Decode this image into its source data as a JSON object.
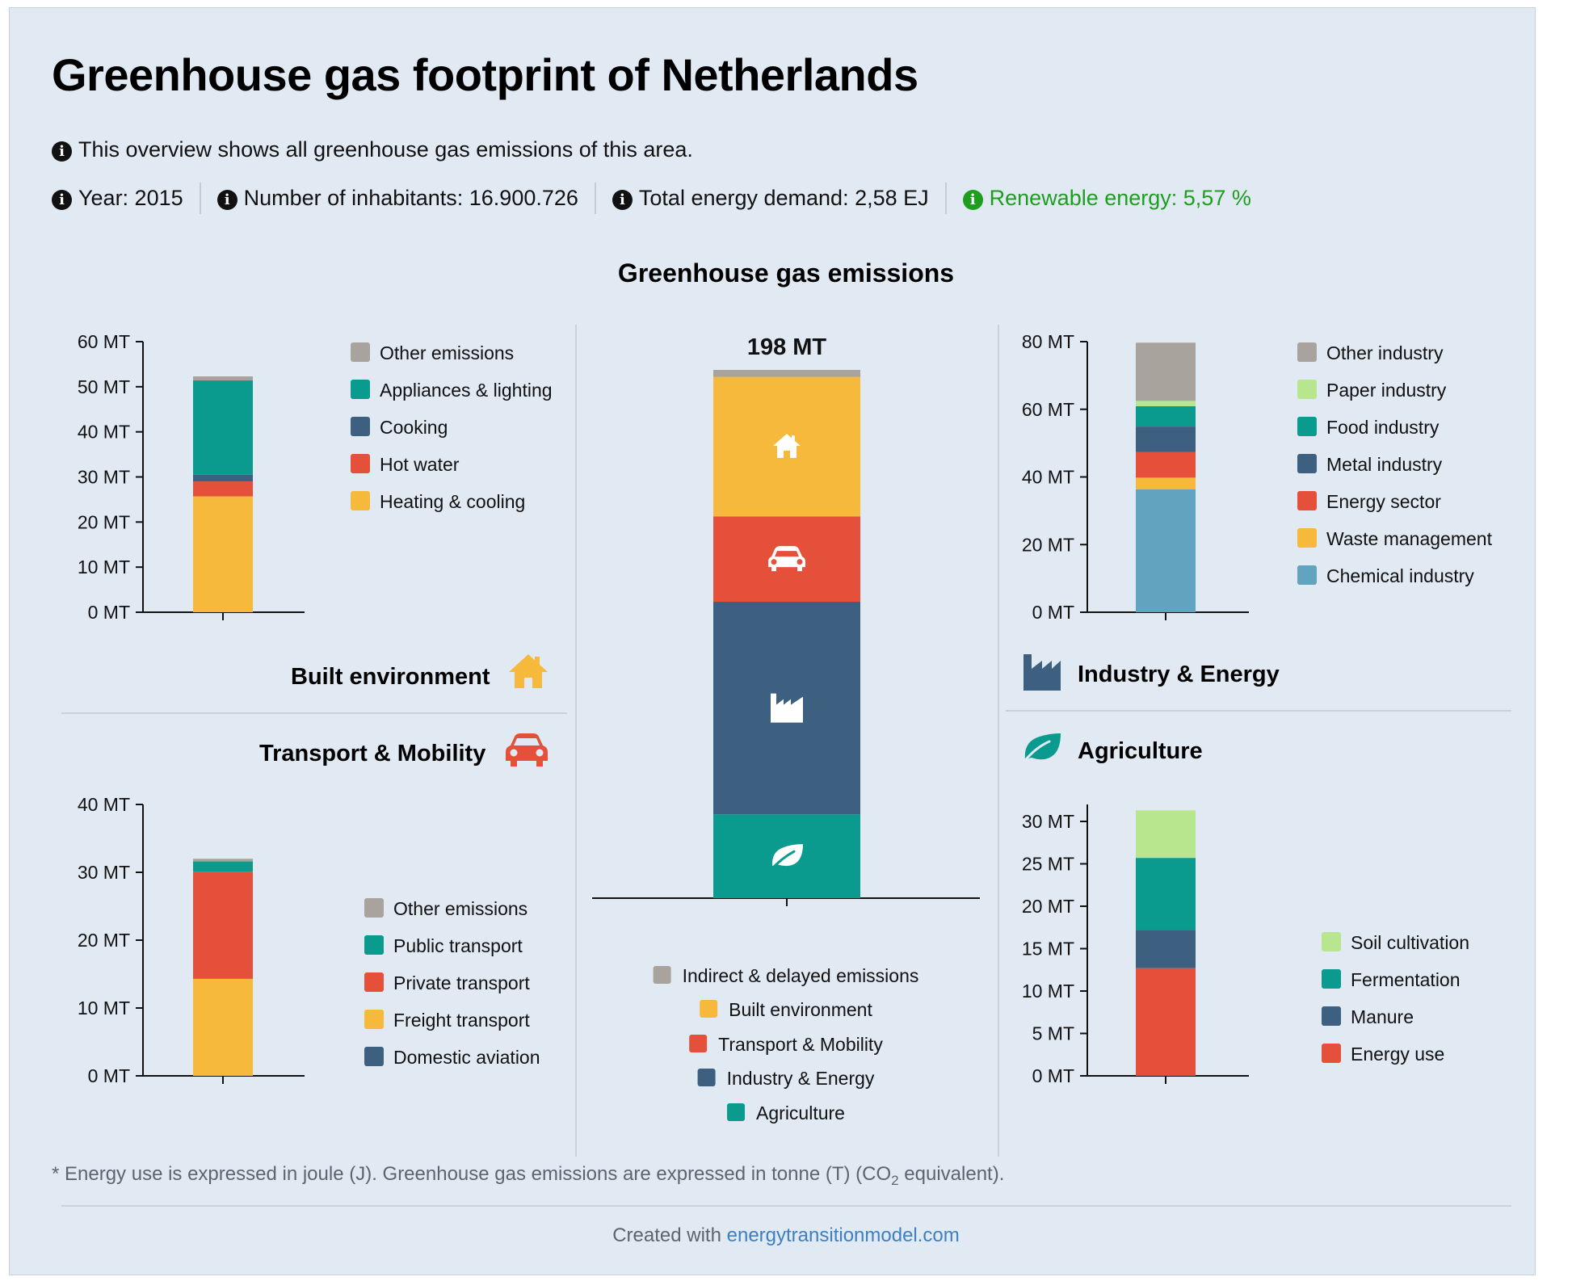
{
  "page": {
    "title": "Greenhouse gas footprint of Netherlands",
    "overview": "This overview shows all greenhouse gas emissions of this area.",
    "stats": [
      "Year: 2015",
      "Number of inhabitants: 16.900.726",
      "Total energy demand: 2,58 EJ",
      "Renewable energy: 5,57 %"
    ],
    "emissions_title": "Greenhouse gas emissions",
    "footnote_pre": "* Energy use is expressed in joule (J). Greenhouse gas emissions are expressed in tonne (T) (CO",
    "footnote_sub": "2",
    "footnote_post": " equivalent).",
    "credit_prefix": "Created with ",
    "credit_link": "energytransitionmodel.com"
  },
  "colors": {
    "grey": "#a8a49d",
    "yellow": "#f6b93b",
    "red": "#e5503a",
    "navy": "#3d5f80",
    "teal": "#0a9a8e",
    "lightgreen": "#b8e68f",
    "steelblue": "#62a3c0",
    "renewable": "#1e9e1e"
  },
  "chart_data": [
    {
      "id": "built",
      "heading": "Built environment",
      "icon": "house-icon",
      "type": "bar",
      "stacked": true,
      "ylim": [
        0,
        60
      ],
      "ticks": [
        0,
        10,
        20,
        30,
        40,
        50,
        60
      ],
      "tick_labels": [
        "0 MT",
        "10 MT",
        "20 MT",
        "30 MT",
        "40 MT",
        "50 MT",
        "60 MT"
      ],
      "series": [
        {
          "name": "Heating & cooling",
          "value": 25.7,
          "color": "#f6b93b"
        },
        {
          "name": "Hot water",
          "value": 3.3,
          "color": "#e5503a"
        },
        {
          "name": "Cooking",
          "value": 1.5,
          "color": "#3d5f80"
        },
        {
          "name": "Appliances & lighting",
          "value": 20.9,
          "color": "#0a9a8e"
        },
        {
          "name": "Other emissions",
          "value": 0.9,
          "color": "#a8a49d"
        }
      ],
      "legend_order": [
        "Other emissions",
        "Appliances & lighting",
        "Cooking",
        "Hot water",
        "Heating & cooling"
      ]
    },
    {
      "id": "transport",
      "heading": "Transport & Mobility",
      "icon": "car-icon",
      "type": "bar",
      "stacked": true,
      "ylim": [
        0,
        40
      ],
      "ticks": [
        0,
        10,
        20,
        30,
        40
      ],
      "tick_labels": [
        "0 MT",
        "10 MT",
        "20 MT",
        "30 MT",
        "40 MT"
      ],
      "series": [
        {
          "name": "Domestic aviation",
          "value": 0.0,
          "color": "#3d5f80"
        },
        {
          "name": "Freight transport",
          "value": 14.3,
          "color": "#f6b93b"
        },
        {
          "name": "Private transport",
          "value": 15.8,
          "color": "#e5503a"
        },
        {
          "name": "Public transport",
          "value": 1.5,
          "color": "#0a9a8e"
        },
        {
          "name": "Other emissions",
          "value": 0.4,
          "color": "#a8a49d"
        }
      ],
      "legend_order": [
        "Other emissions",
        "Public transport",
        "Private transport",
        "Freight transport",
        "Domestic aviation"
      ]
    },
    {
      "id": "total",
      "type": "bar",
      "stacked": true,
      "total_label": "198 MT",
      "total": 198,
      "series": [
        {
          "name": "Agriculture",
          "value": 31.4,
          "color": "#0a9a8e",
          "icon": "leaf-icon"
        },
        {
          "name": "Industry & Energy",
          "value": 79.7,
          "color": "#3d5f80",
          "icon": "factory-icon"
        },
        {
          "name": "Transport & Mobility",
          "value": 32.0,
          "color": "#e5503a",
          "icon": "car-icon"
        },
        {
          "name": "Built environment",
          "value": 52.3,
          "color": "#f6b93b",
          "icon": "house-icon"
        },
        {
          "name": "Indirect & delayed emissions",
          "value": 2.6,
          "color": "#a8a49d"
        }
      ],
      "legend_order": [
        "Indirect & delayed emissions",
        "Built environment",
        "Transport & Mobility",
        "Industry & Energy",
        "Agriculture"
      ]
    },
    {
      "id": "industry",
      "heading": "Industry & Energy",
      "icon": "factory-icon",
      "type": "bar",
      "stacked": true,
      "ylim": [
        0,
        80
      ],
      "ticks": [
        0,
        20,
        40,
        60,
        80
      ],
      "tick_labels": [
        "0 MT",
        "20 MT",
        "40 MT",
        "60 MT",
        "80 MT"
      ],
      "series": [
        {
          "name": "Chemical industry",
          "value": 36.3,
          "color": "#62a3c0"
        },
        {
          "name": "Waste management",
          "value": 3.5,
          "color": "#f6b93b"
        },
        {
          "name": "Energy sector",
          "value": 7.6,
          "color": "#e5503a"
        },
        {
          "name": "Metal industry",
          "value": 7.5,
          "color": "#3d5f80"
        },
        {
          "name": "Food industry",
          "value": 6.0,
          "color": "#0a9a8e"
        },
        {
          "name": "Paper industry",
          "value": 1.6,
          "color": "#b8e68f"
        },
        {
          "name": "Other industry",
          "value": 17.2,
          "color": "#a8a49d"
        }
      ],
      "legend_order": [
        "Other industry",
        "Paper industry",
        "Food industry",
        "Metal industry",
        "Energy sector",
        "Waste management",
        "Chemical industry"
      ]
    },
    {
      "id": "agriculture",
      "heading": "Agriculture",
      "icon": "leaf-icon",
      "type": "bar",
      "stacked": true,
      "ylim": [
        0,
        32
      ],
      "ticks": [
        0,
        5,
        10,
        15,
        20,
        25,
        30
      ],
      "tick_labels": [
        "0 MT",
        "5 MT",
        "10 MT",
        "15 MT",
        "20 MT",
        "25 MT",
        "30 MT"
      ],
      "series": [
        {
          "name": "Energy use",
          "value": 12.7,
          "color": "#e5503a"
        },
        {
          "name": "Manure",
          "value": 4.5,
          "color": "#3d5f80"
        },
        {
          "name": "Fermentation",
          "value": 8.5,
          "color": "#0a9a8e"
        },
        {
          "name": "Soil cultivation",
          "value": 5.6,
          "color": "#b8e68f"
        }
      ],
      "legend_order": [
        "Soil cultivation",
        "Fermentation",
        "Manure",
        "Energy use"
      ]
    }
  ]
}
